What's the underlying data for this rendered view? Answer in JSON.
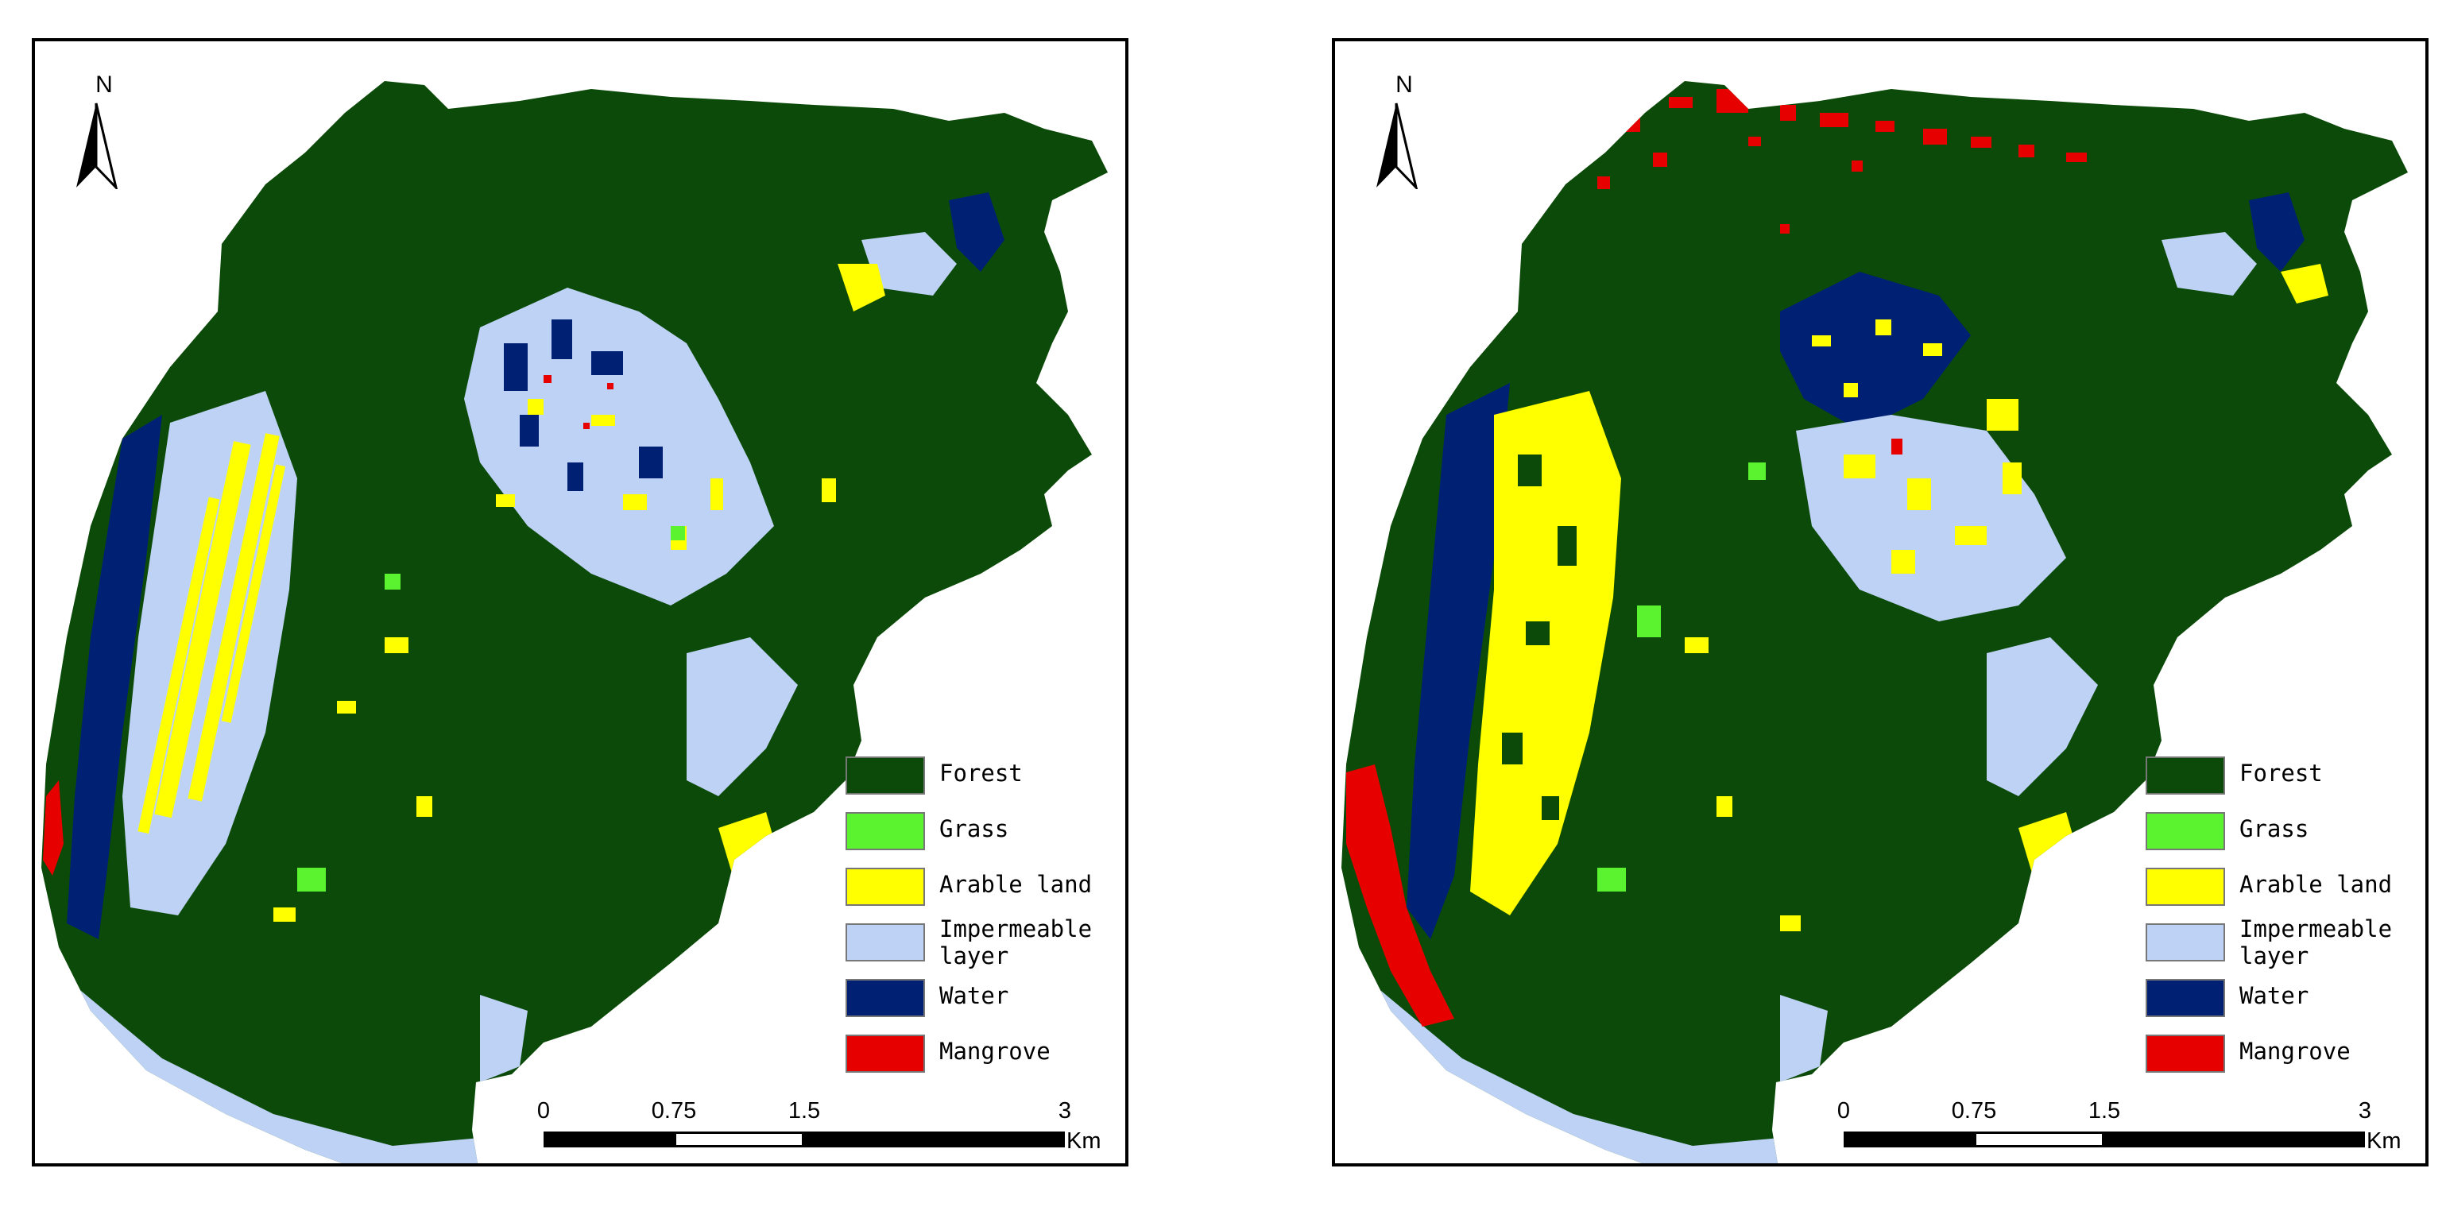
{
  "maps": [
    {
      "id": "left",
      "north_label": "N",
      "legend": [
        {
          "label": "Forest",
          "color": "#0b4a08"
        },
        {
          "label": "Grass",
          "color": "#5bf230"
        },
        {
          "label": "Arable land",
          "color": "#ffff00"
        },
        {
          "label": "Impermeable\n layer",
          "color": "#bed2f5"
        },
        {
          "label": "Water",
          "color": "#002173"
        },
        {
          "label": "Mangrove",
          "color": "#e60000"
        }
      ],
      "scale": {
        "ticks": [
          "0",
          "0.75",
          "1.5",
          "3"
        ],
        "unit": "Km"
      }
    },
    {
      "id": "right",
      "north_label": "N",
      "legend": [
        {
          "label": "Forest",
          "color": "#0b4a08"
        },
        {
          "label": "Grass",
          "color": "#5bf230"
        },
        {
          "label": "Arable land",
          "color": "#ffff00"
        },
        {
          "label": "Impermeable\n layer",
          "color": "#bed2f5"
        },
        {
          "label": "Water",
          "color": "#002173"
        },
        {
          "label": "Mangrove",
          "color": "#e60000"
        }
      ],
      "scale": {
        "ticks": [
          "0",
          "0.75",
          "1.5",
          "3"
        ],
        "unit": "Km"
      }
    }
  ]
}
